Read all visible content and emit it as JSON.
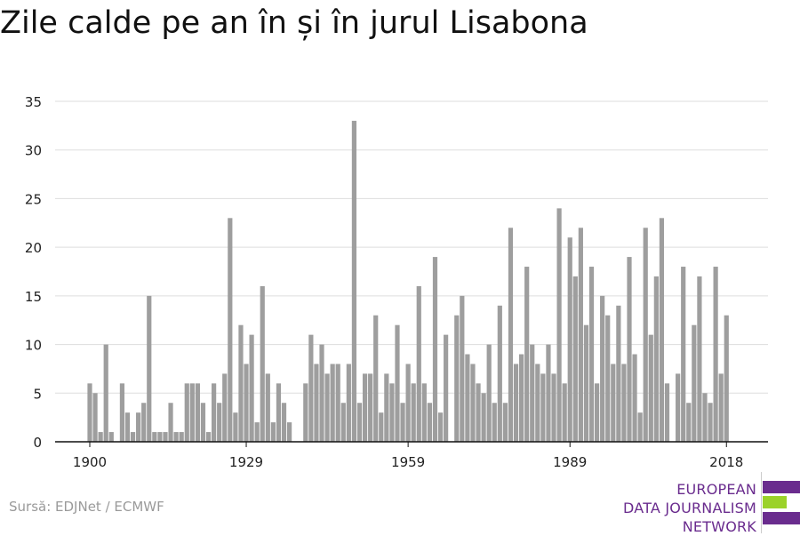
{
  "title": "Zile calde pe an în și în jurul Lisabona",
  "source": "Sursă: EDJNet / ECMWF",
  "logo": {
    "lines": [
      "EUROPEAN",
      "DATA JOURNALISM",
      "NETWORK"
    ],
    "colors": [
      "#6a2c8e",
      "#9bd22a",
      "#6a2c8e"
    ]
  },
  "chart_data": {
    "type": "bar",
    "title": "Zile calde pe an în și în jurul Lisabona",
    "xlabel": "",
    "ylabel": "",
    "ylim": [
      0,
      35
    ],
    "yticks": [
      0,
      5,
      10,
      15,
      20,
      25,
      30,
      35
    ],
    "xticks": [
      1900,
      1929,
      1959,
      1989,
      2018
    ],
    "grid": true,
    "bar_color": "#9e9e9e",
    "x": [
      1900,
      1901,
      1902,
      1903,
      1904,
      1905,
      1906,
      1907,
      1908,
      1909,
      1910,
      1911,
      1912,
      1913,
      1914,
      1915,
      1916,
      1917,
      1918,
      1919,
      1920,
      1921,
      1922,
      1923,
      1924,
      1925,
      1926,
      1927,
      1928,
      1929,
      1930,
      1931,
      1932,
      1933,
      1934,
      1935,
      1936,
      1937,
      1938,
      1939,
      1940,
      1941,
      1942,
      1943,
      1944,
      1945,
      1946,
      1947,
      1948,
      1949,
      1950,
      1951,
      1952,
      1953,
      1954,
      1955,
      1956,
      1957,
      1958,
      1959,
      1960,
      1961,
      1962,
      1963,
      1964,
      1965,
      1966,
      1967,
      1968,
      1969,
      1970,
      1971,
      1972,
      1973,
      1974,
      1975,
      1976,
      1977,
      1978,
      1979,
      1980,
      1981,
      1982,
      1983,
      1984,
      1985,
      1986,
      1987,
      1988,
      1989,
      1990,
      1991,
      1992,
      1993,
      1994,
      1995,
      1996,
      1997,
      1998,
      1999,
      2000,
      2001,
      2002,
      2003,
      2004,
      2005,
      2006,
      2007,
      2008,
      2009,
      2010,
      2011,
      2012,
      2013,
      2014,
      2015,
      2016,
      2017,
      2018
    ],
    "values": [
      6,
      5,
      1,
      10,
      1,
      0,
      6,
      3,
      1,
      3,
      4,
      15,
      1,
      1,
      1,
      4,
      1,
      1,
      6,
      6,
      6,
      4,
      1,
      6,
      4,
      7,
      23,
      3,
      12,
      8,
      11,
      2,
      16,
      7,
      2,
      6,
      4,
      2,
      0,
      0,
      6,
      11,
      8,
      10,
      7,
      8,
      8,
      4,
      8,
      33,
      4,
      7,
      7,
      13,
      3,
      7,
      6,
      12,
      4,
      8,
      6,
      16,
      6,
      4,
      19,
      3,
      11,
      0,
      13,
      15,
      9,
      8,
      6,
      5,
      10,
      4,
      14,
      4,
      22,
      8,
      9,
      18,
      10,
      8,
      7,
      10,
      7,
      24,
      6,
      21,
      17,
      22,
      12,
      18,
      6,
      15,
      13,
      8,
      14,
      8,
      19,
      9,
      3,
      22,
      11,
      17,
      23,
      6,
      0,
      7,
      18,
      4,
      12,
      17,
      5,
      4,
      18,
      7,
      13
    ]
  }
}
